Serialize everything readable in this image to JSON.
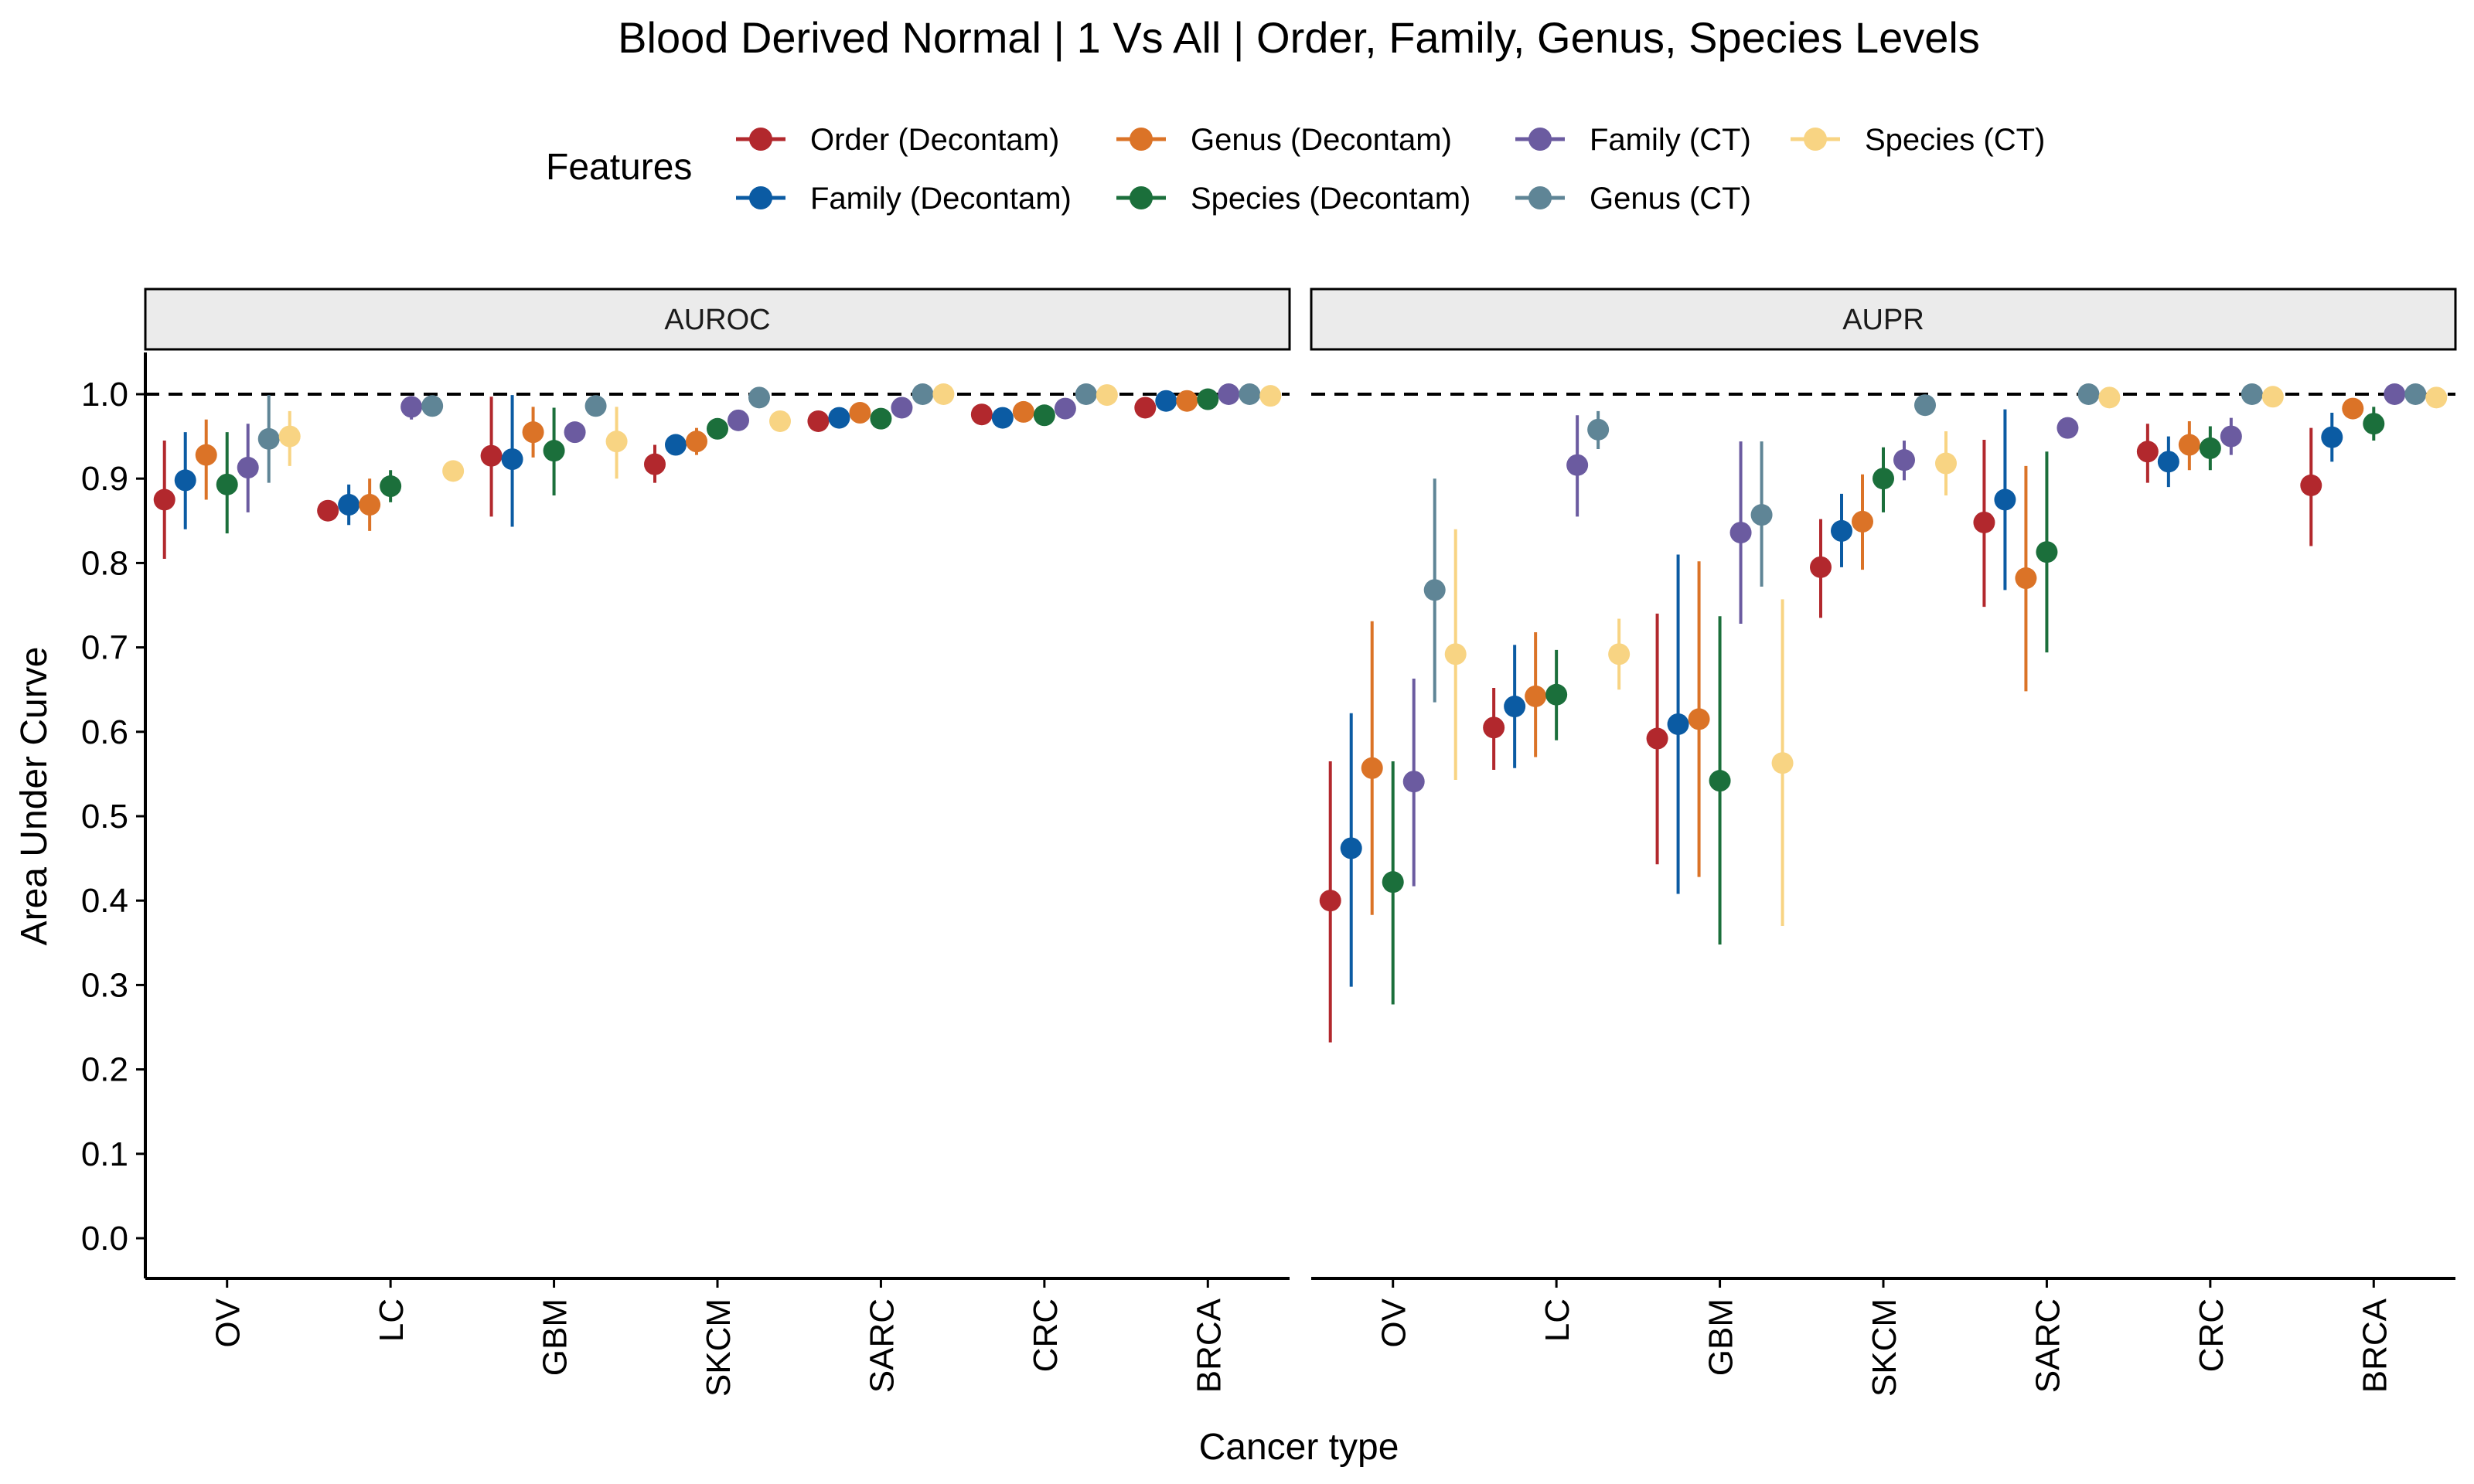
{
  "chart_data": {
    "type": "scatter",
    "title": "Blood Derived Normal | 1 Vs All | Order, Family, Genus, Species Levels",
    "xlabel": "Cancer type",
    "ylabel": "Area Under Curve",
    "ylim": [
      0,
      1
    ],
    "y_ticks": [
      "0.0",
      "0.1",
      "0.2",
      "0.3",
      "0.4",
      "0.5",
      "0.6",
      "0.7",
      "0.8",
      "0.9",
      "1.0"
    ],
    "reference_line": 1.0,
    "legend_title": "Features",
    "legend_position": "top",
    "categories": [
      "OV",
      "LC",
      "GBM",
      "SKCM",
      "SARC",
      "CRC",
      "BRCA"
    ],
    "series": [
      {
        "name": "Order (Decontam)",
        "color": "#B2282D"
      },
      {
        "name": "Family (Decontam)",
        "color": "#0B5BA3"
      },
      {
        "name": "Genus (Decontam)",
        "color": "#DB7327"
      },
      {
        "name": "Species (Decontam)",
        "color": "#1B6F3B"
      },
      {
        "name": "Family (CT)",
        "color": "#6B5BA0"
      },
      {
        "name": "Genus (CT)",
        "color": "#5F8596"
      },
      {
        "name": "Species (CT)",
        "color": "#F8D483"
      }
    ],
    "panels": [
      {
        "name": "AUROC",
        "data": {
          "OV": [
            [
              0.875,
              0.805,
              0.945
            ],
            [
              0.898,
              0.84,
              0.955
            ],
            [
              0.928,
              0.875,
              0.97
            ],
            [
              0.893,
              0.835,
              0.955
            ],
            [
              0.913,
              0.86,
              0.965
            ],
            [
              0.947,
              0.895,
              0.999
            ],
            [
              0.95,
              0.915,
              0.98
            ]
          ],
          "LC": [
            [
              0.862,
              0.855,
              0.87
            ],
            [
              0.869,
              0.845,
              0.893
            ],
            [
              0.869,
              0.838,
              0.9
            ],
            [
              0.891,
              0.872,
              0.91
            ],
            [
              0.985,
              0.97,
              0.995
            ],
            [
              0.986,
              0.976,
              0.996
            ],
            [
              0.909,
              0.9,
              0.918
            ]
          ],
          "GBM": [
            [
              0.927,
              0.855,
              0.997
            ],
            [
              0.923,
              0.843,
              0.999
            ],
            [
              0.955,
              0.925,
              0.985
            ],
            [
              0.933,
              0.88,
              0.984
            ],
            [
              0.955,
              0.945,
              0.965
            ],
            [
              0.986,
              0.976,
              0.996
            ],
            [
              0.944,
              0.9,
              0.985
            ]
          ],
          "SKCM": [
            [
              0.917,
              0.895,
              0.94
            ],
            [
              0.94,
              0.93,
              0.95
            ],
            [
              0.944,
              0.928,
              0.96
            ],
            [
              0.959,
              0.948,
              0.97
            ],
            [
              0.969,
              0.962,
              0.976
            ],
            [
              0.996,
              0.99,
              1.0
            ],
            [
              0.968,
              0.962,
              0.974
            ]
          ],
          "SARC": [
            [
              0.968,
              0.962,
              0.974
            ],
            [
              0.972,
              0.965,
              0.979
            ],
            [
              0.978,
              0.97,
              0.985
            ],
            [
              0.971,
              0.964,
              0.978
            ],
            [
              0.984,
              0.979,
              0.989
            ],
            [
              1.0,
              0.997,
              1.0
            ],
            [
              1.0,
              0.997,
              1.0
            ]
          ],
          "CRC": [
            [
              0.976,
              0.97,
              0.982
            ],
            [
              0.972,
              0.965,
              0.979
            ],
            [
              0.979,
              0.973,
              0.985
            ],
            [
              0.975,
              0.969,
              0.981
            ],
            [
              0.983,
              0.978,
              0.988
            ],
            [
              1.0,
              0.998,
              1.0
            ],
            [
              0.999,
              0.996,
              1.0
            ]
          ],
          "BRCA": [
            [
              0.984,
              0.978,
              0.99
            ],
            [
              0.992,
              0.988,
              0.996
            ],
            [
              0.992,
              0.986,
              0.998
            ],
            [
              0.994,
              0.99,
              0.998
            ],
            [
              1.0,
              0.998,
              1.0
            ],
            [
              1.0,
              0.998,
              1.0
            ],
            [
              0.998,
              0.995,
              1.0
            ]
          ]
        }
      },
      {
        "name": "AUPR",
        "data": {
          "OV": [
            [
              0.4,
              0.232,
              0.565
            ],
            [
              0.462,
              0.298,
              0.622
            ],
            [
              0.557,
              0.383,
              0.731
            ],
            [
              0.422,
              0.277,
              0.565
            ],
            [
              0.541,
              0.417,
              0.663
            ],
            [
              0.768,
              0.635,
              0.9
            ],
            [
              0.692,
              0.543,
              0.84
            ]
          ],
          "LC": [
            [
              0.605,
              0.555,
              0.652
            ],
            [
              0.63,
              0.557,
              0.703
            ],
            [
              0.642,
              0.57,
              0.718
            ],
            [
              0.644,
              0.59,
              0.697
            ],
            [
              0.916,
              0.855,
              0.975
            ],
            [
              0.958,
              0.935,
              0.98
            ],
            [
              0.692,
              0.65,
              0.734
            ]
          ],
          "GBM": [
            [
              0.592,
              0.443,
              0.74
            ],
            [
              0.609,
              0.408,
              0.81
            ],
            [
              0.615,
              0.428,
              0.802
            ],
            [
              0.542,
              0.348,
              0.737
            ],
            [
              0.836,
              0.728,
              0.944
            ],
            [
              0.857,
              0.772,
              0.944
            ],
            [
              0.563,
              0.37,
              0.757
            ]
          ],
          "SKCM": [
            [
              0.795,
              0.735,
              0.852
            ],
            [
              0.838,
              0.795,
              0.882
            ],
            [
              0.849,
              0.792,
              0.905
            ],
            [
              0.9,
              0.86,
              0.937
            ],
            [
              0.922,
              0.898,
              0.945
            ],
            [
              0.987,
              0.978,
              0.995
            ],
            [
              0.918,
              0.88,
              0.956
            ]
          ],
          "SARC": [
            [
              0.848,
              0.748,
              0.946
            ],
            [
              0.875,
              0.768,
              0.982
            ],
            [
              0.782,
              0.648,
              0.915
            ],
            [
              0.813,
              0.694,
              0.932
            ],
            [
              0.96,
              0.952,
              0.968
            ],
            [
              1.0,
              0.995,
              1.0
            ],
            [
              0.996,
              0.99,
              1.0
            ]
          ],
          "CRC": [
            [
              0.932,
              0.895,
              0.965
            ],
            [
              0.92,
              0.89,
              0.95
            ],
            [
              0.94,
              0.91,
              0.968
            ],
            [
              0.936,
              0.91,
              0.962
            ],
            [
              0.95,
              0.928,
              0.972
            ],
            [
              1.0,
              0.996,
              1.0
            ],
            [
              0.997,
              0.993,
              1.0
            ]
          ],
          "BRCA": [
            [
              0.892,
              0.82,
              0.96
            ],
            [
              0.949,
              0.92,
              0.978
            ],
            [
              0.983,
              0.975,
              0.991
            ],
            [
              0.965,
              0.945,
              0.985
            ],
            [
              1.0,
              0.997,
              1.0
            ],
            [
              1.0,
              0.997,
              1.0
            ],
            [
              0.996,
              0.992,
              1.0
            ]
          ]
        }
      }
    ]
  }
}
